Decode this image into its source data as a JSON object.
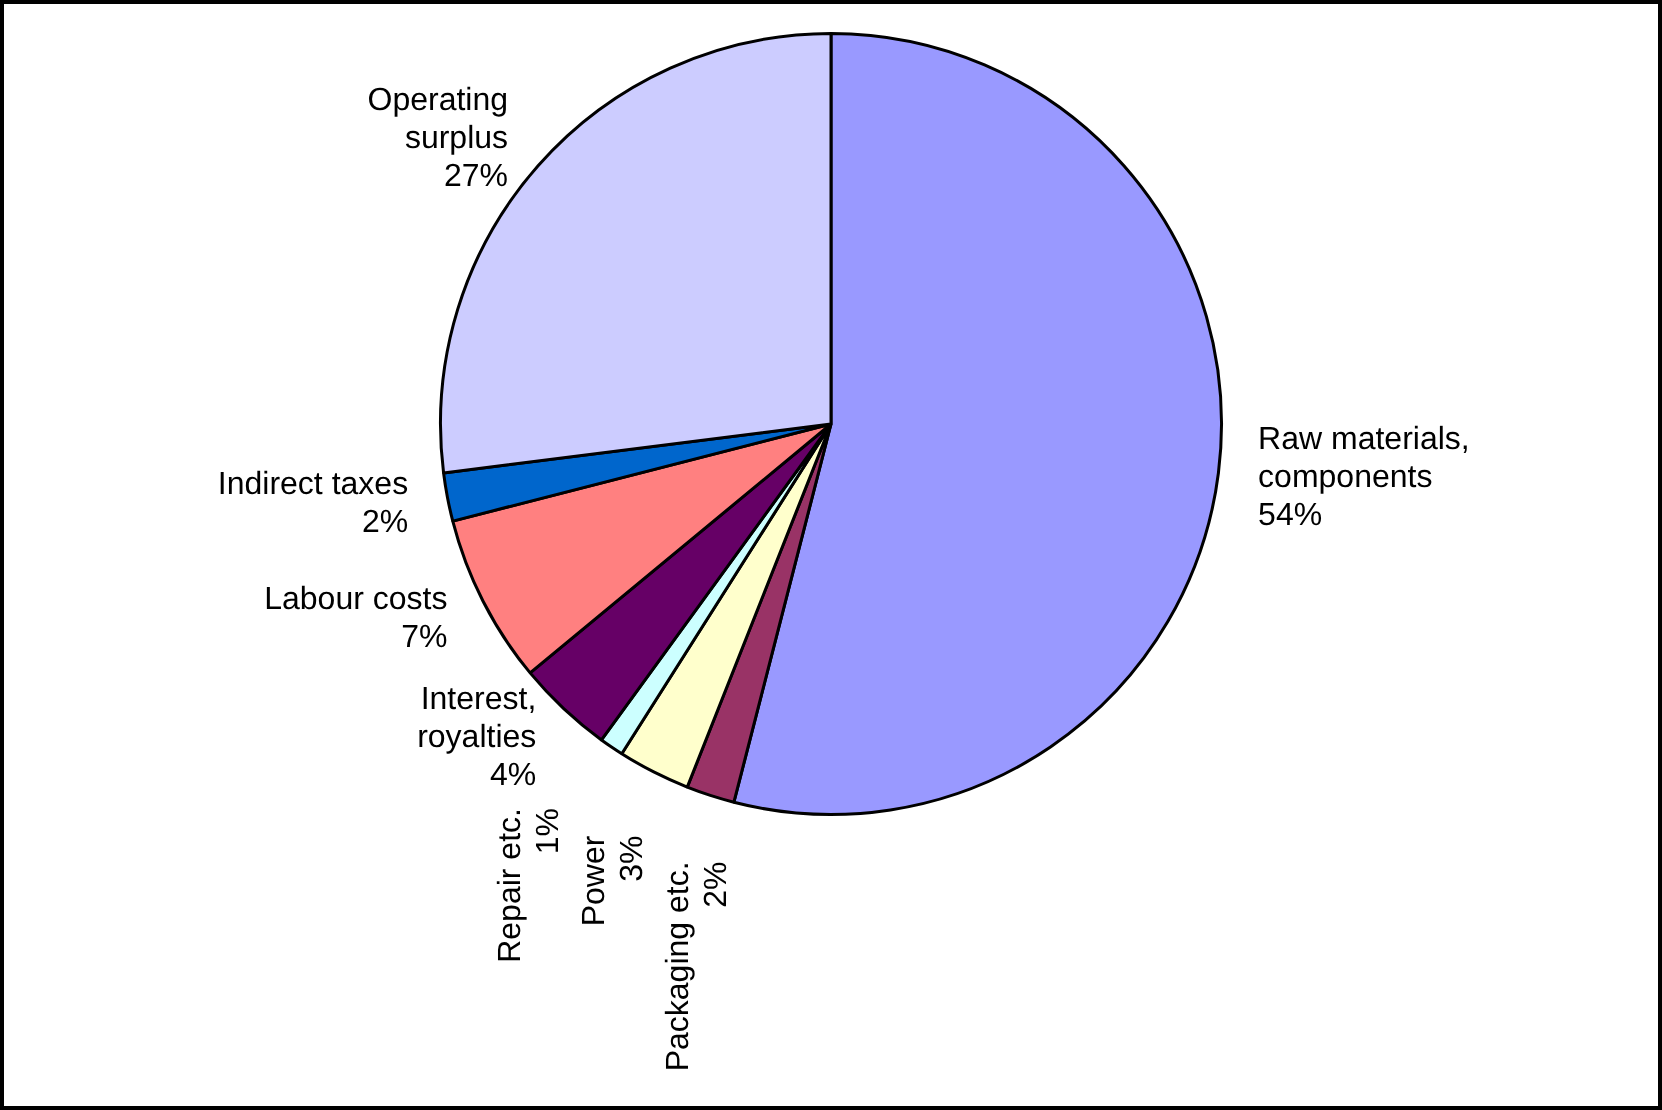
{
  "chart_data": {
    "type": "pie",
    "categories": [
      "Raw materials, components",
      "Packaging etc.",
      "Power",
      "Repair etc.",
      "Interest, royalties",
      "Labour costs",
      "Indirect taxes",
      "Operating surplus"
    ],
    "values": [
      54,
      2,
      3,
      1,
      4,
      7,
      2,
      27
    ],
    "value_labels": [
      "54%",
      "2%",
      "3%",
      "1%",
      "4%",
      "7%",
      "2%",
      "27%"
    ],
    "colors": [
      "#9999ff",
      "#993366",
      "#ffffcc",
      "#ccffff",
      "#660066",
      "#ff8080",
      "#0066cc",
      "#ccccff"
    ],
    "legend": false
  }
}
